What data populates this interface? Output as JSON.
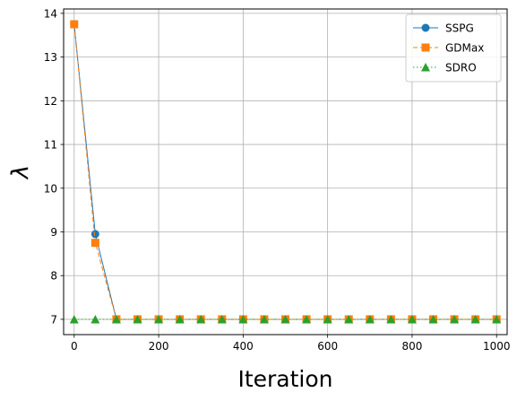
{
  "chart_data": {
    "type": "line",
    "xlabel": "Iteration",
    "ylabel": "λ",
    "xlim": [
      -25,
      1025
    ],
    "ylim": [
      6.65,
      14.1
    ],
    "xticks": [
      0,
      200,
      400,
      600,
      800,
      1000
    ],
    "yticks": [
      7,
      8,
      9,
      10,
      11,
      12,
      13,
      14
    ],
    "grid": true,
    "legend_position": "top-right",
    "x": [
      0,
      50,
      100,
      150,
      200,
      250,
      300,
      350,
      400,
      450,
      500,
      550,
      600,
      650,
      700,
      750,
      800,
      850,
      900,
      950,
      1000
    ],
    "series": [
      {
        "name": "SSPG",
        "color": "#1f77b4",
        "marker": "circle",
        "linestyle": "solid",
        "values": [
          13.75,
          8.95,
          7.0,
          7.0,
          7.0,
          7.0,
          7.0,
          7.0,
          7.0,
          7.0,
          7.0,
          7.0,
          7.0,
          7.0,
          7.0,
          7.0,
          7.0,
          7.0,
          7.0,
          7.0,
          7.0
        ]
      },
      {
        "name": "GDMax",
        "color": "#ff7f0e",
        "marker": "square",
        "linestyle": "dashed",
        "values": [
          13.75,
          8.75,
          7.0,
          7.0,
          7.0,
          7.0,
          7.0,
          7.0,
          7.0,
          7.0,
          7.0,
          7.0,
          7.0,
          7.0,
          7.0,
          7.0,
          7.0,
          7.0,
          7.0,
          7.0,
          7.0
        ]
      },
      {
        "name": "SDRO",
        "color": "#2ca02c",
        "marker": "triangle",
        "linestyle": "dotted",
        "values": [
          7.0,
          7.0,
          7.0,
          7.0,
          7.0,
          7.0,
          7.0,
          7.0,
          7.0,
          7.0,
          7.0,
          7.0,
          7.0,
          7.0,
          7.0,
          7.0,
          7.0,
          7.0,
          7.0,
          7.0,
          7.0
        ]
      }
    ]
  }
}
